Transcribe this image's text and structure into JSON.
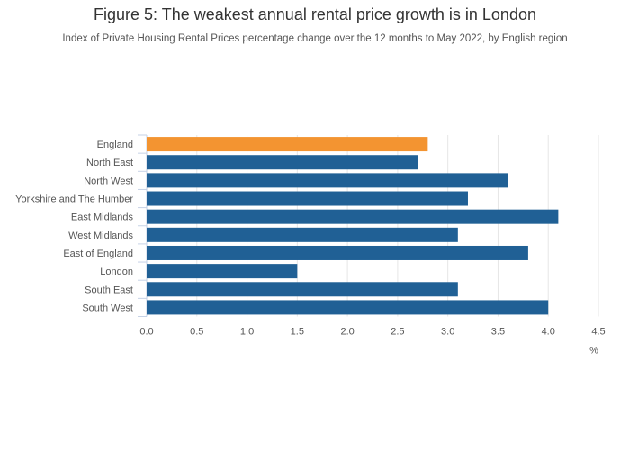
{
  "chart_data": {
    "type": "bar",
    "orientation": "horizontal",
    "title": "Figure 5: The weakest annual rental price growth is in London",
    "subtitle": "Index of Private Housing Rental Prices percentage change over the 12 months to May 2022, by English region",
    "categories": [
      "England",
      "North East",
      "North West",
      "Yorkshire and The Humber",
      "East Midlands",
      "West Midlands",
      "East of England",
      "London",
      "South East",
      "South West"
    ],
    "values": [
      2.8,
      2.7,
      3.6,
      3.2,
      4.1,
      3.1,
      3.8,
      1.5,
      3.1,
      4.0
    ],
    "highlight_category": "England",
    "colors": {
      "highlight": "#f39431",
      "default": "#206095",
      "grid": "#e6e6e6",
      "axis": "#c6d2e6"
    },
    "xlabel": "%",
    "xlim": [
      0,
      4.5
    ],
    "xticks": [
      "0.0",
      "0.5",
      "1.0",
      "1.5",
      "2.0",
      "2.5",
      "3.0",
      "3.5",
      "4.0",
      "4.5"
    ],
    "grid": true
  }
}
